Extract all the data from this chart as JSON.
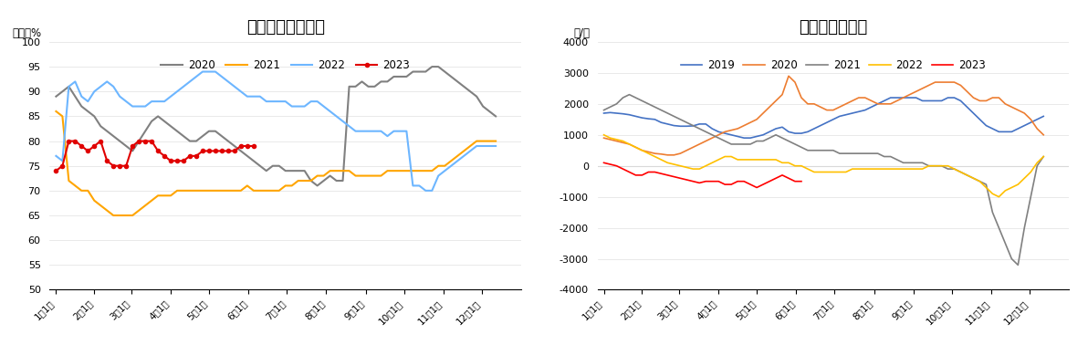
{
  "chart1_title": "甲醇制烯烃开工率",
  "chart1_ylabel": "单位：%",
  "chart1_ylim": [
    50,
    100
  ],
  "chart1_yticks": [
    50,
    55,
    60,
    65,
    70,
    75,
    80,
    85,
    90,
    95,
    100
  ],
  "chart2_title": "甲醇制烯烃利润",
  "chart2_ylabel": "元/吨",
  "chart2_ylim": [
    -4000,
    4000
  ],
  "chart2_yticks": [
    -4000,
    -3000,
    -2000,
    -1000,
    0,
    1000,
    2000,
    3000,
    4000
  ],
  "x_labels": [
    "1月1日",
    "2月1日",
    "3月1日",
    "4月1日",
    "5月1日",
    "6月1日",
    "7月1日",
    "8月1日",
    "9月1日",
    "10月1日",
    "11月1日",
    "12月1日"
  ],
  "x_ticks": [
    0,
    30,
    59,
    90,
    120,
    151,
    181,
    212,
    243,
    273,
    304,
    334
  ],
  "chart1_series": {
    "2020": {
      "color": "#808080",
      "values_x": [
        0,
        5,
        10,
        15,
        20,
        25,
        30,
        35,
        40,
        45,
        50,
        55,
        60,
        65,
        70,
        75,
        80,
        85,
        90,
        95,
        100,
        105,
        110,
        115,
        120,
        125,
        130,
        135,
        140,
        145,
        150,
        155,
        160,
        165,
        170,
        175,
        180,
        185,
        190,
        195,
        200,
        205,
        210,
        215,
        220,
        225,
        230,
        235,
        240,
        245,
        250,
        255,
        260,
        265,
        270,
        275,
        280,
        285,
        290,
        295,
        300,
        305,
        310,
        315,
        320,
        325,
        330,
        335,
        340,
        345
      ],
      "values_y": [
        89,
        90,
        91,
        89,
        87,
        86,
        85,
        83,
        82,
        81,
        80,
        79,
        78,
        80,
        82,
        84,
        85,
        84,
        83,
        82,
        81,
        80,
        80,
        81,
        82,
        82,
        81,
        80,
        79,
        78,
        77,
        76,
        75,
        74,
        75,
        75,
        74,
        74,
        74,
        74,
        72,
        71,
        72,
        73,
        72,
        72,
        91,
        91,
        92,
        91,
        91,
        92,
        92,
        93,
        93,
        93,
        94,
        94,
        94,
        95,
        95,
        94,
        93,
        92,
        91,
        90,
        89,
        87,
        86,
        85
      ]
    },
    "2021": {
      "color": "#FFA500",
      "values_x": [
        0,
        5,
        10,
        15,
        20,
        25,
        30,
        35,
        40,
        45,
        50,
        55,
        60,
        65,
        70,
        75,
        80,
        85,
        90,
        95,
        100,
        105,
        110,
        115,
        120,
        125,
        130,
        135,
        140,
        145,
        150,
        155,
        160,
        165,
        170,
        175,
        180,
        185,
        190,
        195,
        200,
        205,
        210,
        215,
        220,
        225,
        230,
        235,
        240,
        245,
        250,
        255,
        260,
        265,
        270,
        275,
        280,
        285,
        290,
        295,
        300,
        305,
        310,
        315,
        320,
        325,
        330,
        335,
        340,
        345
      ],
      "values_y": [
        86,
        85,
        72,
        71,
        70,
        70,
        68,
        67,
        66,
        65,
        65,
        65,
        65,
        66,
        67,
        68,
        69,
        69,
        69,
        70,
        70,
        70,
        70,
        70,
        70,
        70,
        70,
        70,
        70,
        70,
        71,
        70,
        70,
        70,
        70,
        70,
        71,
        71,
        72,
        72,
        72,
        73,
        73,
        74,
        74,
        74,
        74,
        73,
        73,
        73,
        73,
        73,
        74,
        74,
        74,
        74,
        74,
        74,
        74,
        74,
        75,
        75,
        76,
        77,
        78,
        79,
        80,
        80,
        80,
        80
      ]
    },
    "2022": {
      "color": "#6DB6FF",
      "values_x": [
        0,
        5,
        10,
        15,
        20,
        25,
        30,
        35,
        40,
        45,
        50,
        55,
        60,
        65,
        70,
        75,
        80,
        85,
        90,
        95,
        100,
        105,
        110,
        115,
        120,
        125,
        130,
        135,
        140,
        145,
        150,
        155,
        160,
        165,
        170,
        175,
        180,
        185,
        190,
        195,
        200,
        205,
        210,
        215,
        220,
        225,
        230,
        235,
        240,
        245,
        250,
        255,
        260,
        265,
        270,
        275,
        280,
        285,
        290,
        295,
        300,
        305,
        310,
        315,
        320,
        325,
        330,
        335,
        340,
        345
      ],
      "values_y": [
        77,
        76,
        91,
        92,
        89,
        88,
        90,
        91,
        92,
        91,
        89,
        88,
        87,
        87,
        87,
        88,
        88,
        88,
        89,
        90,
        91,
        92,
        93,
        94,
        94,
        94,
        93,
        92,
        91,
        90,
        89,
        89,
        89,
        88,
        88,
        88,
        88,
        87,
        87,
        87,
        88,
        88,
        87,
        86,
        85,
        84,
        83,
        82,
        82,
        82,
        82,
        82,
        81,
        82,
        82,
        82,
        71,
        71,
        70,
        70,
        73,
        74,
        75,
        76,
        77,
        78,
        79,
        79,
        79,
        79
      ]
    },
    "2023": {
      "color": "#E00000",
      "marker": "o",
      "values_x": [
        0,
        5,
        10,
        15,
        20,
        25,
        30,
        35,
        40,
        45,
        50,
        55,
        60,
        65,
        70,
        75,
        80,
        85,
        90,
        95,
        100,
        105,
        110,
        115,
        120,
        125,
        130,
        135,
        140,
        145,
        150,
        155
      ],
      "values_y": [
        74,
        75,
        80,
        80,
        79,
        78,
        79,
        80,
        76,
        75,
        75,
        75,
        79,
        80,
        80,
        80,
        78,
        77,
        76,
        76,
        76,
        77,
        77,
        78,
        78,
        78,
        78,
        78,
        78,
        79,
        79,
        79
      ]
    }
  },
  "chart2_series": {
    "2019": {
      "color": "#4472C4",
      "values_x": [
        0,
        5,
        10,
        15,
        20,
        25,
        30,
        35,
        40,
        45,
        50,
        55,
        60,
        65,
        70,
        75,
        80,
        85,
        90,
        95,
        100,
        105,
        110,
        115,
        120,
        125,
        130,
        135,
        140,
        145,
        150,
        155,
        160,
        165,
        170,
        175,
        180,
        185,
        190,
        195,
        200,
        205,
        210,
        215,
        220,
        225,
        230,
        235,
        240,
        245,
        250,
        255,
        260,
        265,
        270,
        275,
        280,
        285,
        290,
        295,
        300,
        305,
        310,
        315,
        320,
        325,
        330,
        335,
        340,
        345
      ],
      "values_y": [
        1700,
        1720,
        1700,
        1680,
        1650,
        1600,
        1550,
        1520,
        1500,
        1400,
        1350,
        1300,
        1280,
        1280,
        1290,
        1350,
        1350,
        1200,
        1100,
        1050,
        1000,
        950,
        900,
        900,
        950,
        1000,
        1100,
        1200,
        1250,
        1100,
        1050,
        1050,
        1100,
        1200,
        1300,
        1400,
        1500,
        1600,
        1650,
        1700,
        1750,
        1800,
        1900,
        2000,
        2100,
        2200,
        2200,
        2200,
        2200,
        2200,
        2100,
        2100,
        2100,
        2100,
        2200,
        2200,
        2100,
        1900,
        1700,
        1500,
        1300,
        1200,
        1100,
        1100,
        1100,
        1200,
        1300,
        1400,
        1500,
        1600
      ]
    },
    "2020": {
      "color": "#ED7D31",
      "values_x": [
        0,
        5,
        10,
        15,
        20,
        25,
        30,
        35,
        40,
        45,
        50,
        55,
        60,
        65,
        70,
        75,
        80,
        85,
        90,
        95,
        100,
        105,
        110,
        115,
        120,
        125,
        130,
        135,
        140,
        145,
        150,
        155,
        160,
        165,
        170,
        175,
        180,
        185,
        190,
        195,
        200,
        205,
        210,
        215,
        220,
        225,
        230,
        235,
        240,
        245,
        250,
        255,
        260,
        265,
        270,
        275,
        280,
        285,
        290,
        295,
        300,
        305,
        310,
        315,
        320,
        325,
        330,
        335,
        340,
        345
      ],
      "values_y": [
        900,
        850,
        800,
        750,
        700,
        600,
        500,
        450,
        400,
        380,
        350,
        350,
        400,
        500,
        600,
        700,
        800,
        900,
        1000,
        1100,
        1150,
        1200,
        1300,
        1400,
        1500,
        1700,
        1900,
        2100,
        2300,
        2900,
        2700,
        2200,
        2000,
        2000,
        1900,
        1800,
        1800,
        1900,
        2000,
        2100,
        2200,
        2200,
        2100,
        2000,
        2000,
        2000,
        2100,
        2200,
        2300,
        2400,
        2500,
        2600,
        2700,
        2700,
        2700,
        2700,
        2600,
        2400,
        2200,
        2100,
        2100,
        2200,
        2200,
        2000,
        1900,
        1800,
        1700,
        1500,
        1200,
        1000
      ]
    },
    "2021": {
      "color": "#808080",
      "values_x": [
        0,
        5,
        10,
        15,
        20,
        25,
        30,
        35,
        40,
        45,
        50,
        55,
        60,
        65,
        70,
        75,
        80,
        85,
        90,
        95,
        100,
        105,
        110,
        115,
        120,
        125,
        130,
        135,
        140,
        145,
        150,
        155,
        160,
        165,
        170,
        175,
        180,
        185,
        190,
        195,
        200,
        205,
        210,
        215,
        220,
        225,
        230,
        235,
        240,
        245,
        250,
        255,
        260,
        265,
        270,
        275,
        280,
        285,
        290,
        295,
        300,
        305,
        310,
        315,
        320,
        325,
        330,
        335,
        340,
        345
      ],
      "values_y": [
        1800,
        1900,
        2000,
        2200,
        2300,
        2200,
        2100,
        2000,
        1900,
        1800,
        1700,
        1600,
        1500,
        1400,
        1300,
        1200,
        1100,
        1000,
        900,
        800,
        700,
        700,
        700,
        700,
        800,
        800,
        900,
        1000,
        900,
        800,
        700,
        600,
        500,
        500,
        500,
        500,
        500,
        400,
        400,
        400,
        400,
        400,
        400,
        400,
        300,
        300,
        200,
        100,
        100,
        100,
        100,
        0,
        0,
        0,
        -100,
        -100,
        -200,
        -300,
        -400,
        -500,
        -600,
        -1500,
        -2000,
        -2500,
        -3000,
        -3200,
        -2000,
        -1000,
        0,
        300
      ]
    },
    "2022": {
      "color": "#FFC000",
      "values_x": [
        0,
        5,
        10,
        15,
        20,
        25,
        30,
        35,
        40,
        45,
        50,
        55,
        60,
        65,
        70,
        75,
        80,
        85,
        90,
        95,
        100,
        105,
        110,
        115,
        120,
        125,
        130,
        135,
        140,
        145,
        150,
        155,
        160,
        165,
        170,
        175,
        180,
        185,
        190,
        195,
        200,
        205,
        210,
        215,
        220,
        225,
        230,
        235,
        240,
        245,
        250,
        255,
        260,
        265,
        270,
        275,
        280,
        285,
        290,
        295,
        300,
        305,
        310,
        315,
        320,
        325,
        330,
        335,
        340,
        345
      ],
      "values_y": [
        1000,
        900,
        850,
        800,
        700,
        600,
        500,
        400,
        300,
        200,
        100,
        50,
        0,
        -50,
        -100,
        -100,
        0,
        100,
        200,
        300,
        300,
        200,
        200,
        200,
        200,
        200,
        200,
        200,
        100,
        100,
        0,
        0,
        -100,
        -200,
        -200,
        -200,
        -200,
        -200,
        -200,
        -100,
        -100,
        -100,
        -100,
        -100,
        -100,
        -100,
        -100,
        -100,
        -100,
        -100,
        -100,
        0,
        0,
        0,
        0,
        -100,
        -200,
        -300,
        -400,
        -500,
        -700,
        -900,
        -1000,
        -800,
        -700,
        -600,
        -400,
        -200,
        100,
        300
      ]
    },
    "2023": {
      "color": "#FF0000",
      "values_x": [
        0,
        5,
        10,
        15,
        20,
        25,
        30,
        35,
        40,
        45,
        50,
        55,
        60,
        65,
        70,
        75,
        80,
        85,
        90,
        95,
        100,
        105,
        110,
        115,
        120,
        125,
        130,
        135,
        140,
        145,
        150,
        155
      ],
      "values_y": [
        100,
        50,
        0,
        -100,
        -200,
        -300,
        -300,
        -200,
        -200,
        -250,
        -300,
        -350,
        -400,
        -450,
        -500,
        -550,
        -500,
        -500,
        -500,
        -600,
        -600,
        -500,
        -500,
        -600,
        -700,
        -600,
        -500,
        -400,
        -300,
        -400,
        -500,
        -500
      ]
    }
  }
}
